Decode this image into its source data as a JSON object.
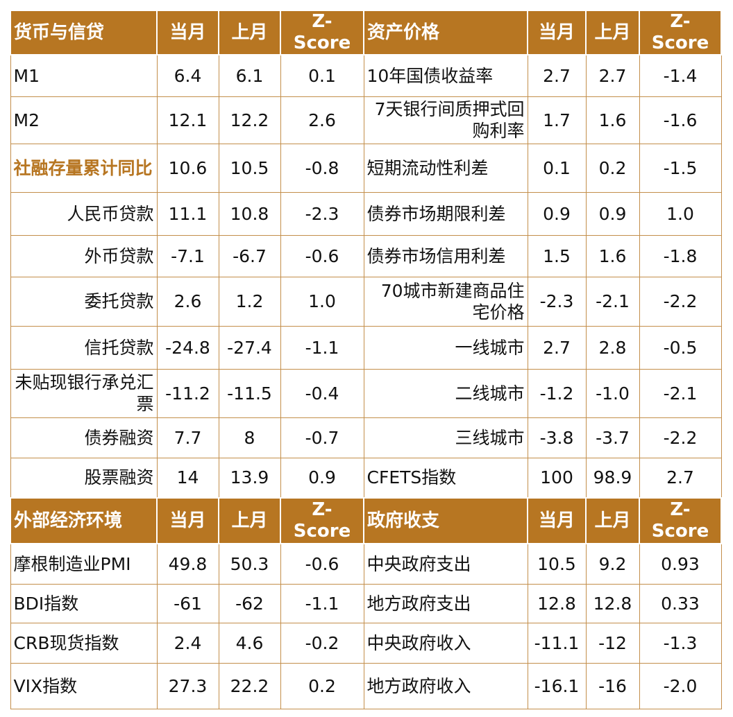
{
  "headers": {
    "top": [
      "货币与信贷",
      "当月",
      "上月",
      "Z-Score",
      "资产价格",
      "当月",
      "上月",
      "Z-Score"
    ],
    "bottom": [
      "外部经济环境",
      "当月",
      "上月",
      "Z-Score",
      "政府收支",
      "当月",
      "上月",
      "Z-Score"
    ]
  },
  "top_rows": [
    [
      "M1",
      "6.4",
      "6.1",
      "0.1",
      "10年国债收益率",
      "2.7",
      "2.7",
      "-1.4"
    ],
    [
      "M2",
      "12.1",
      "12.2",
      "2.6",
      "7天银行间质押式回购利率",
      "1.7",
      "1.6",
      "-1.6"
    ],
    [
      "社融存量累计同比",
      "10.6",
      "10.5",
      "-0.8",
      "短期流动性利差",
      "0.1",
      "0.2",
      "-1.5"
    ],
    [
      "人民币贷款",
      "11.1",
      "10.8",
      "-2.3",
      "债券市场期限利差",
      "0.9",
      "0.9",
      "1.0"
    ],
    [
      "外币贷款",
      "-7.1",
      "-6.7",
      "-0.6",
      "债券市场信用利差",
      "1.5",
      "1.6",
      "-1.8"
    ],
    [
      "委托贷款",
      "2.6",
      "1.2",
      "1.0",
      "70城市新建商品住宅价格",
      "-2.3",
      "-2.1",
      "-2.2"
    ],
    [
      "信托贷款",
      "-24.8",
      "-27.4",
      "-1.1",
      "一线城市",
      "2.7",
      "2.8",
      "-0.5"
    ],
    [
      "未贴现银行承兑汇票",
      "-11.2",
      "-11.5",
      "-0.4",
      "二线城市",
      "-1.2",
      "-1.0",
      "-2.1"
    ],
    [
      "债券融资",
      "7.7",
      "8",
      "-0.7",
      "三线城市",
      "-3.8",
      "-3.7",
      "-2.2"
    ],
    [
      "股票融资",
      "14",
      "13.9",
      "0.9",
      "CFETS指数",
      "100",
      "98.9",
      "2.7"
    ]
  ],
  "bottom_rows": [
    [
      "摩根制造业PMI",
      "49.8",
      "50.3",
      "-0.6",
      "中央政府支出",
      "10.5",
      "9.2",
      "0.93"
    ],
    [
      "BDI指数",
      "-61",
      "-62",
      "-1.1",
      "地方政府支出",
      "12.8",
      "12.8",
      "0.33"
    ],
    [
      "CRB现货指数",
      "2.4",
      "4.6",
      "-0.2",
      "中央政府收入",
      "-11.1",
      "-12",
      "-1.3"
    ],
    [
      "VIX指数",
      "27.3",
      "22.2",
      "0.2",
      "地方政府收入",
      "-16.1",
      "-16",
      "-2.0"
    ]
  ],
  "colors": {
    "header_bg": "#b77622",
    "border": "#c38e4a",
    "highlight_text": "#b77622"
  }
}
